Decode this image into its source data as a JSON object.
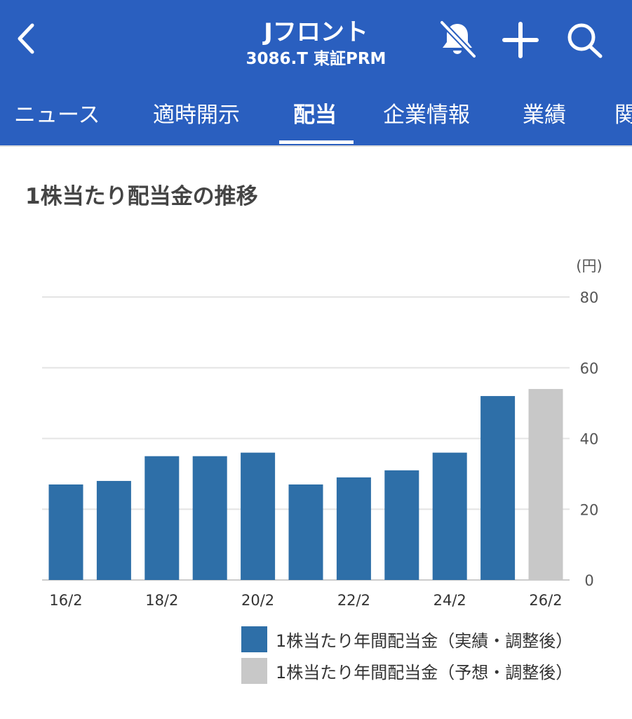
{
  "header": {
    "title": "Jフロント",
    "subtitle": "3086.T 東証PRM",
    "icons": [
      "back-chevron-icon",
      "bell-off-icon",
      "plus-icon",
      "search-icon"
    ]
  },
  "tabs": [
    {
      "label": "ニュース"
    },
    {
      "label": "適時開示"
    },
    {
      "label": "配当",
      "active": true
    },
    {
      "label": "企業情報"
    },
    {
      "label": "業績"
    },
    {
      "label": "関"
    }
  ],
  "section_title": "1株当たり配当金の推移",
  "colors": {
    "header": "#2a5fbf",
    "actual": "#2e6fa8",
    "forecast": "#c8c8c8"
  },
  "chart_data": {
    "type": "bar",
    "title": "1株当たり配当金の推移",
    "unit_label": "(円)",
    "categories": [
      "16/2",
      "17/2",
      "18/2",
      "19/2",
      "20/2",
      "21/2",
      "22/2",
      "23/2",
      "24/2",
      "25/2",
      "26/2"
    ],
    "x_tick_labels": [
      "16/2",
      "18/2",
      "20/2",
      "22/2",
      "24/2",
      "26/2"
    ],
    "series": [
      {
        "name": "1株当たり年間配当金（実績・調整後）",
        "values": [
          27,
          28,
          35,
          35,
          36,
          27,
          29,
          31,
          36,
          52,
          null
        ]
      },
      {
        "name": "1株当たり年間配当金（予想・調整後）",
        "values": [
          null,
          null,
          null,
          null,
          null,
          null,
          null,
          null,
          null,
          null,
          54
        ]
      }
    ],
    "ylim": [
      0,
      80
    ],
    "y_ticks": [
      "0",
      "20",
      "40",
      "60",
      "80"
    ],
    "grid": true,
    "legend_position": "bottom-right"
  }
}
